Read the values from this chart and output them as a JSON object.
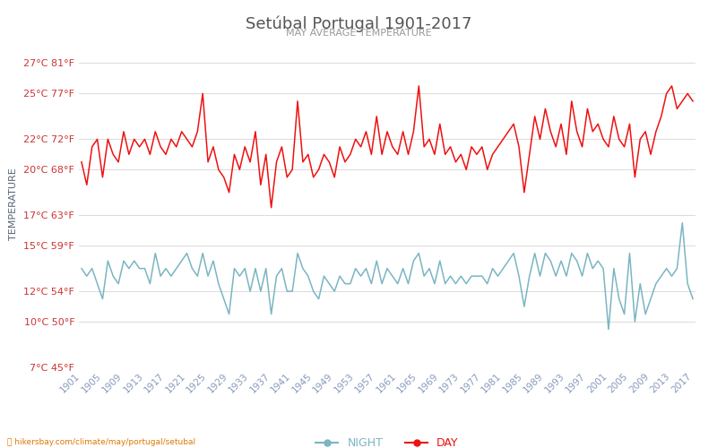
{
  "title": "Setúbal Portugal 1901-2017",
  "subtitle": "MAY AVERAGE TEMPERATURE",
  "ylabel": "TEMPERATURE",
  "xlabel_bottom": "hikersbay.com/climate/may/portugal/setubal",
  "years": [
    1901,
    1902,
    1903,
    1904,
    1905,
    1906,
    1907,
    1908,
    1909,
    1910,
    1911,
    1912,
    1913,
    1914,
    1915,
    1916,
    1917,
    1918,
    1919,
    1920,
    1921,
    1922,
    1923,
    1924,
    1925,
    1926,
    1927,
    1928,
    1929,
    1930,
    1931,
    1932,
    1933,
    1934,
    1935,
    1936,
    1937,
    1938,
    1939,
    1940,
    1941,
    1942,
    1943,
    1944,
    1945,
    1946,
    1947,
    1948,
    1949,
    1950,
    1951,
    1952,
    1953,
    1954,
    1955,
    1956,
    1957,
    1958,
    1959,
    1960,
    1961,
    1962,
    1963,
    1964,
    1965,
    1966,
    1967,
    1968,
    1969,
    1970,
    1971,
    1972,
    1973,
    1974,
    1975,
    1976,
    1977,
    1978,
    1979,
    1980,
    1981,
    1982,
    1983,
    1984,
    1985,
    1986,
    1987,
    1988,
    1989,
    1990,
    1991,
    1992,
    1993,
    1994,
    1995,
    1996,
    1997,
    1998,
    1999,
    2000,
    2001,
    2002,
    2003,
    2004,
    2005,
    2006,
    2007,
    2008,
    2009,
    2010,
    2011,
    2012,
    2013,
    2014,
    2015,
    2016,
    2017
  ],
  "day_temps": [
    20.5,
    19.0,
    21.5,
    22.0,
    19.5,
    22.0,
    21.0,
    20.5,
    22.5,
    21.0,
    22.0,
    21.5,
    22.0,
    21.0,
    22.5,
    21.5,
    21.0,
    22.0,
    21.5,
    22.5,
    22.0,
    21.5,
    22.5,
    25.0,
    20.5,
    21.5,
    20.0,
    19.5,
    18.5,
    21.0,
    20.0,
    21.5,
    20.5,
    22.5,
    19.0,
    21.0,
    17.5,
    20.5,
    21.5,
    19.5,
    20.0,
    24.5,
    20.5,
    21.0,
    19.5,
    20.0,
    21.0,
    20.5,
    19.5,
    21.5,
    20.5,
    21.0,
    22.0,
    21.5,
    22.5,
    21.0,
    23.5,
    21.0,
    22.5,
    21.5,
    21.0,
    22.5,
    21.0,
    22.5,
    25.5,
    21.5,
    22.0,
    21.0,
    23.0,
    21.0,
    21.5,
    20.5,
    21.0,
    20.0,
    21.5,
    21.0,
    21.5,
    20.0,
    21.0,
    21.5,
    22.0,
    22.5,
    23.0,
    21.5,
    18.5,
    21.0,
    23.5,
    22.0,
    24.0,
    22.5,
    21.5,
    23.0,
    21.0,
    24.5,
    22.5,
    21.5,
    24.0,
    22.5,
    23.0,
    22.0,
    21.5,
    23.5,
    22.0,
    21.5,
    23.0,
    19.5,
    22.0,
    22.5,
    21.0,
    22.5,
    23.5,
    25.0,
    25.5,
    24.0,
    24.5,
    25.0,
    24.5
  ],
  "night_temps": [
    13.5,
    13.0,
    13.5,
    12.5,
    11.5,
    14.0,
    13.0,
    12.5,
    14.0,
    13.5,
    14.0,
    13.5,
    13.5,
    12.5,
    14.5,
    13.0,
    13.5,
    13.0,
    13.5,
    14.0,
    14.5,
    13.5,
    13.0,
    14.5,
    13.0,
    14.0,
    12.5,
    11.5,
    10.5,
    13.5,
    13.0,
    13.5,
    12.0,
    13.5,
    12.0,
    13.5,
    10.5,
    13.0,
    13.5,
    12.0,
    12.0,
    14.5,
    13.5,
    13.0,
    12.0,
    11.5,
    13.0,
    12.5,
    12.0,
    13.0,
    12.5,
    12.5,
    13.5,
    13.0,
    13.5,
    12.5,
    14.0,
    12.5,
    13.5,
    13.0,
    12.5,
    13.5,
    12.5,
    14.0,
    14.5,
    13.0,
    13.5,
    12.5,
    14.0,
    12.5,
    13.0,
    12.5,
    13.0,
    12.5,
    13.0,
    13.0,
    13.0,
    12.5,
    13.5,
    13.0,
    13.5,
    14.0,
    14.5,
    13.0,
    11.0,
    13.0,
    14.5,
    13.0,
    14.5,
    14.0,
    13.0,
    14.0,
    13.0,
    14.5,
    14.0,
    13.0,
    14.5,
    13.5,
    14.0,
    13.5,
    9.5,
    13.5,
    11.5,
    10.5,
    14.5,
    10.0,
    12.5,
    10.5,
    11.5,
    12.5,
    13.0,
    13.5,
    13.0,
    13.5,
    16.5,
    12.5,
    11.5
  ],
  "yticks_c": [
    7,
    10,
    12,
    15,
    17,
    20,
    22,
    25,
    27
  ],
  "yticks_f": [
    45,
    50,
    54,
    59,
    63,
    68,
    72,
    77,
    81
  ],
  "ymin": 7,
  "ymax": 28.5,
  "bg_color": "#ffffff",
  "grid_color": "#dddddd",
  "day_color": "#ee1111",
  "night_color": "#7ab5c2",
  "title_color": "#555555",
  "subtitle_color": "#999999",
  "ylabel_color": "#556677",
  "tick_color": "#cc3333",
  "xtick_color": "#8899bb"
}
